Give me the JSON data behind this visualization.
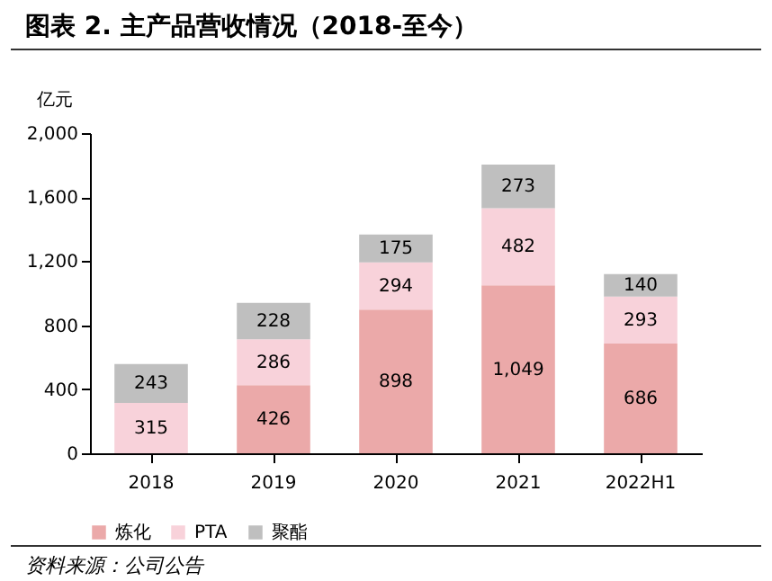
{
  "chart_data": {
    "type": "bar",
    "title": "图表 2. 主产品营收情况（2018-至今）",
    "ylabel": "亿元",
    "annotations": [
      "资料来源：公司公告"
    ],
    "categories": [
      "2018",
      "2019",
      "2020",
      "2021",
      "2022H1"
    ],
    "series": [
      {
        "name": "炼化",
        "color": "#eba9a9",
        "values": [
          null,
          426,
          898,
          1049,
          686
        ],
        "value_labels": [
          null,
          "426",
          "898",
          "1,049",
          "686"
        ]
      },
      {
        "name": "PTA",
        "color": "#f8d2da",
        "values": [
          315,
          286,
          294,
          482,
          293
        ],
        "value_labels": [
          "315",
          "286",
          "294",
          "482",
          "293"
        ]
      },
      {
        "name": "聚酯",
        "color": "#bfbfbf",
        "values": [
          243,
          228,
          175,
          273,
          140
        ],
        "value_labels": [
          "243",
          "228",
          "175",
          "273",
          "140"
        ]
      }
    ],
    "stacked": true,
    "legend": "bottom",
    "grid": false,
    "ylim": [
      0,
      2000
    ],
    "yticks": [
      0,
      400,
      800,
      {
        "value": 1200,
        "label": "1,200"
      },
      {
        "value": 1600,
        "label": "1,600"
      },
      {
        "value": 2000,
        "label": "2,000"
      }
    ]
  }
}
